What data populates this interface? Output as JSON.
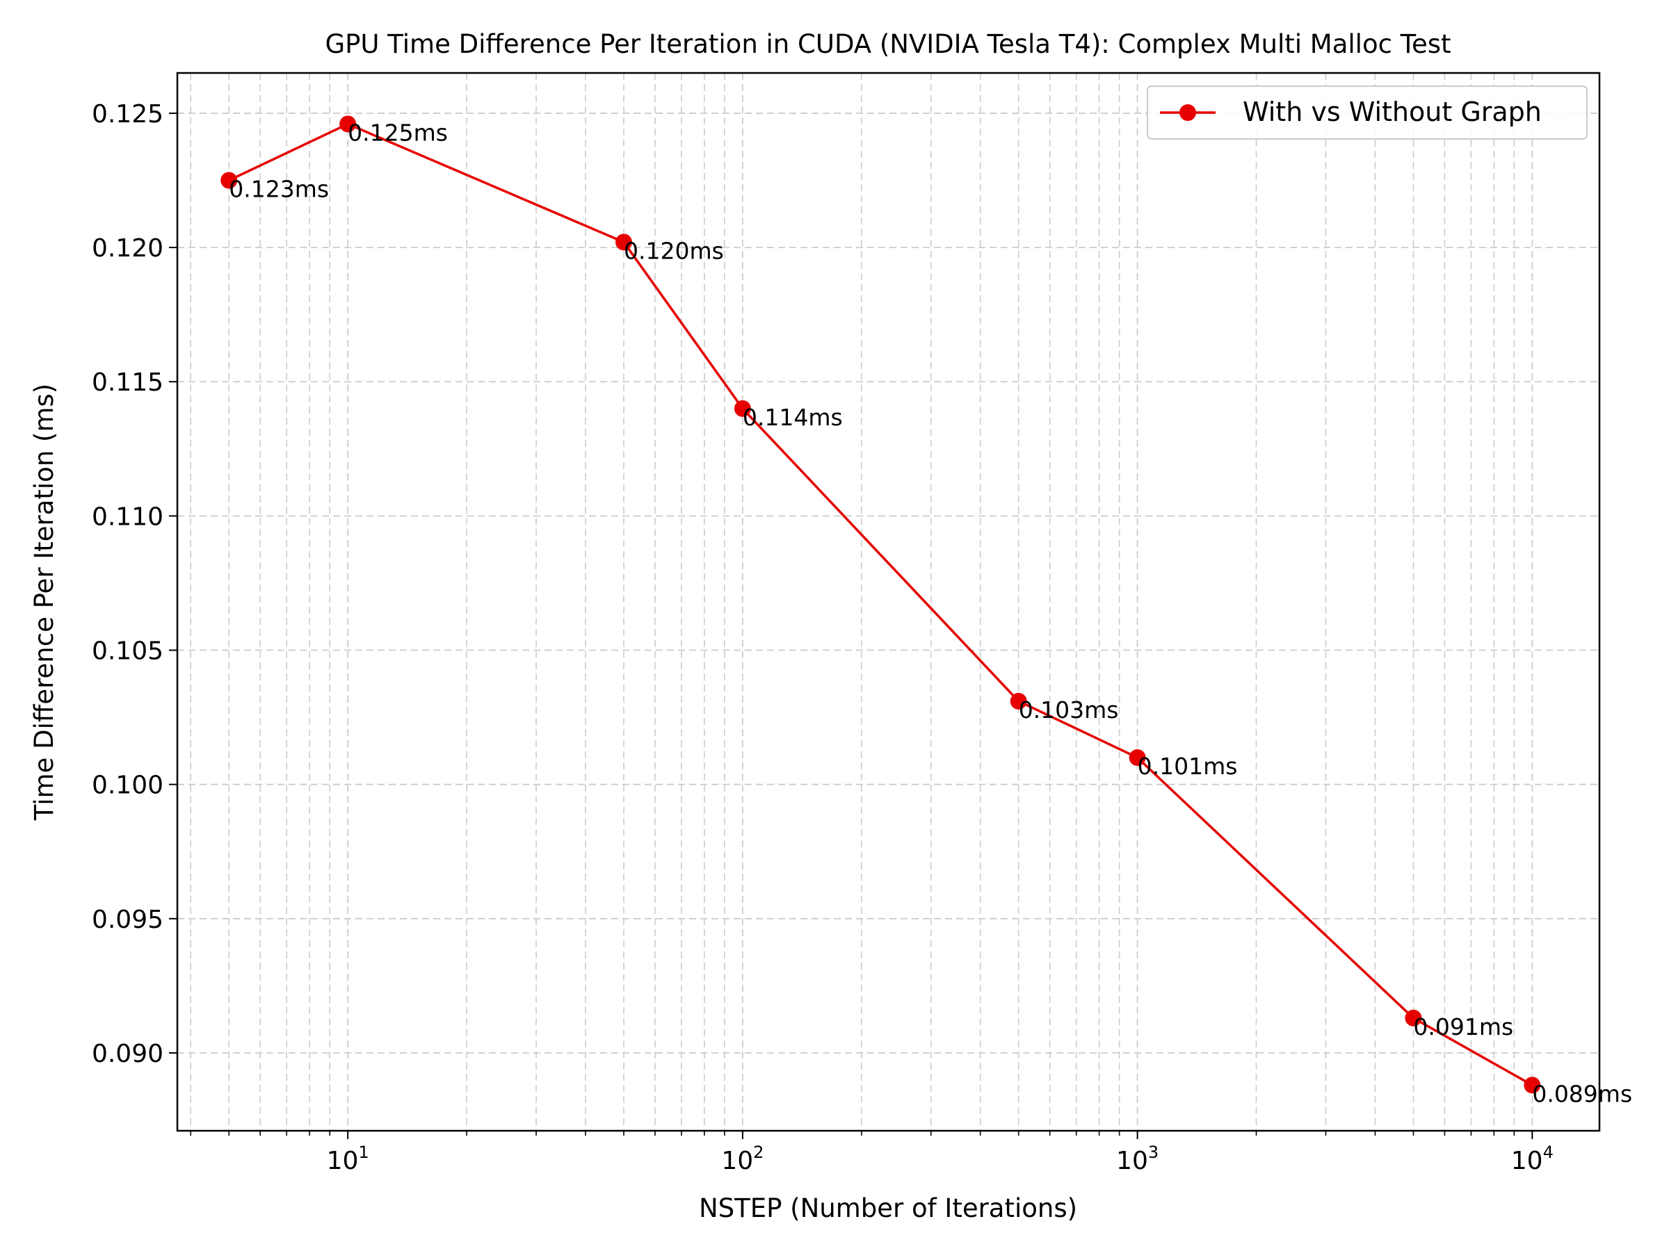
{
  "chart_data": {
    "type": "line",
    "title": "GPU Time Difference Per Iteration in CUDA (NVIDIA Tesla T4): Complex Multi Malloc Test",
    "xlabel": "NSTEP (Number of Iterations)",
    "ylabel": "Time Difference Per Iteration (ms)",
    "xscale": "log",
    "xlim": [
      3.7,
      14800
    ],
    "ylim": [
      0.0871,
      0.1265
    ],
    "grid": true,
    "legend_position": "top-right",
    "x_ticks": [
      {
        "value": 10,
        "base": "10",
        "exp": "1"
      },
      {
        "value": 100,
        "base": "10",
        "exp": "2"
      },
      {
        "value": 1000,
        "base": "10",
        "exp": "3"
      },
      {
        "value": 10000,
        "base": "10",
        "exp": "4"
      }
    ],
    "y_ticks": [
      {
        "value": 0.09,
        "label": "0.090"
      },
      {
        "value": 0.095,
        "label": "0.095"
      },
      {
        "value": 0.1,
        "label": "0.100"
      },
      {
        "value": 0.105,
        "label": "0.105"
      },
      {
        "value": 0.11,
        "label": "0.110"
      },
      {
        "value": 0.115,
        "label": "0.115"
      },
      {
        "value": 0.12,
        "label": "0.120"
      },
      {
        "value": 0.125,
        "label": "0.125"
      }
    ],
    "series": [
      {
        "name": "With vs Without Graph",
        "color": "#e60000",
        "x": [
          5,
          10,
          50,
          100,
          500,
          1000,
          5000,
          10000
        ],
        "y": [
          0.1225,
          0.1246,
          0.1202,
          0.114,
          0.1031,
          0.101,
          0.0913,
          0.0888
        ],
        "labels": [
          "0.123ms",
          "0.125ms",
          "0.120ms",
          "0.114ms",
          "0.103ms",
          "0.101ms",
          "0.091ms",
          "0.089ms"
        ]
      }
    ]
  }
}
